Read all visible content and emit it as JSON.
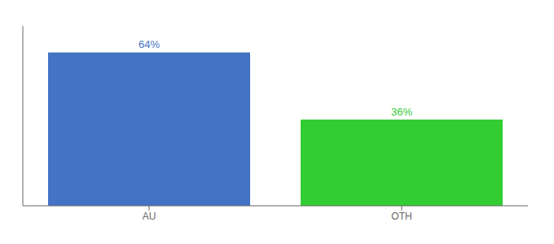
{
  "chart_data": {
    "type": "bar",
    "categories": [
      "AU",
      "OTH"
    ],
    "values": [
      64,
      36
    ],
    "value_labels": [
      "64%",
      "36%"
    ],
    "colors": [
      "#4472c4",
      "#33cc33"
    ],
    "ylim": [
      0,
      75
    ],
    "data_labels": true,
    "tick_labels": "x",
    "grid": false
  }
}
